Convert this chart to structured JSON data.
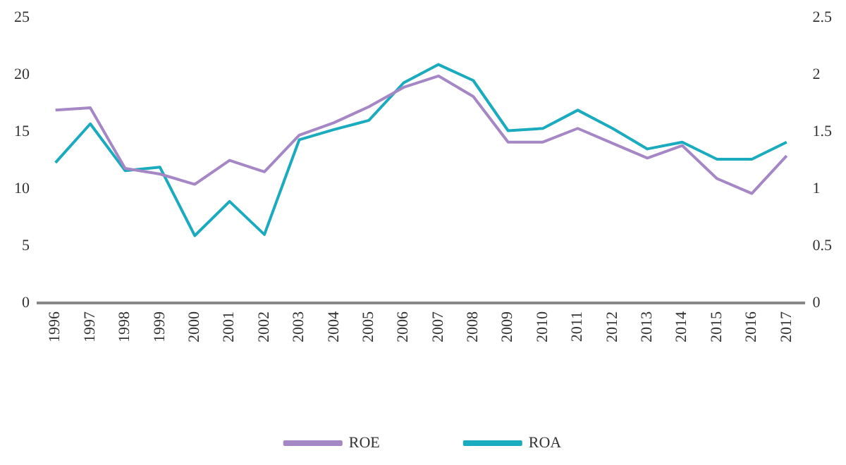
{
  "chart_data": {
    "type": "line",
    "categories": [
      "1996",
      "1997",
      "1998",
      "1999",
      "2000",
      "2001",
      "2002",
      "2003",
      "2004",
      "2005",
      "2006",
      "2007",
      "2008",
      "2009",
      "2010",
      "2011",
      "2012",
      "2013",
      "2014",
      "2015",
      "2016",
      "2017"
    ],
    "series": [
      {
        "name": "ROE",
        "color": "#a487c4",
        "values": [
          16.9,
          17.1,
          11.8,
          11.3,
          10.4,
          12.5,
          11.5,
          14.7,
          15.8,
          17.2,
          18.9,
          19.9,
          18.1,
          14.1,
          14.1,
          15.3,
          14.0,
          12.7,
          13.8,
          10.9,
          9.6,
          12.9
        ]
      },
      {
        "name": "ROA",
        "color": "#1aabbf",
        "axis": "y2",
        "values": [
          1.23,
          1.57,
          1.16,
          1.19,
          0.59,
          0.89,
          0.6,
          1.43,
          1.52,
          1.6,
          1.93,
          2.09,
          1.95,
          1.51,
          1.53,
          1.69,
          1.53,
          1.35,
          1.41,
          1.26,
          1.26,
          1.41
        ]
      }
    ],
    "ylim": [
      0,
      25
    ],
    "yticks": [
      0,
      5,
      10,
      15,
      20,
      25
    ],
    "y2lim": [
      0,
      2.5
    ],
    "y2ticks": [
      0,
      0.5,
      1,
      1.5,
      2,
      2.5
    ],
    "grid": false,
    "legend": "bottom",
    "marker": "none",
    "line_style": "solid"
  }
}
